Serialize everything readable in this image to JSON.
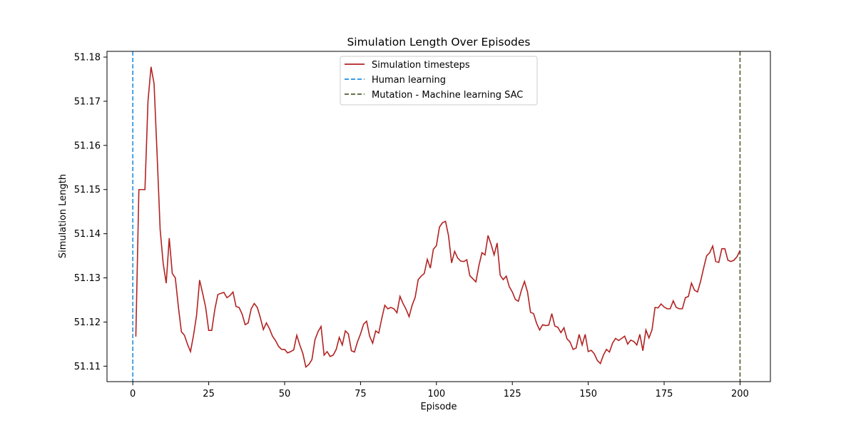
{
  "chart_data": {
    "type": "line",
    "title": "Simulation Length Over Episodes",
    "xlabel": "Episode",
    "ylabel": "Simulation Length",
    "xlim": [
      -8.5,
      210
    ],
    "ylim": [
      51.1065,
      51.1813
    ],
    "xticks": [
      0,
      25,
      50,
      75,
      100,
      125,
      150,
      175,
      200
    ],
    "yticks": [
      51.11,
      51.12,
      51.13,
      51.14,
      51.15,
      51.16,
      51.17,
      51.18
    ],
    "ytick_labels": [
      "51.11",
      "51.12",
      "51.13",
      "51.14",
      "51.15",
      "51.16",
      "51.17",
      "51.18"
    ],
    "grid": false,
    "legend_position": "top-center",
    "series": [
      {
        "name": "Simulation timesteps",
        "color": "#b22222",
        "style": "solid",
        "x": [
          1,
          2,
          3,
          4,
          5,
          6,
          7,
          8,
          9,
          10,
          11,
          12,
          13,
          14,
          15,
          16,
          17,
          18,
          19,
          20,
          21,
          22,
          23,
          24,
          25,
          26,
          27,
          28,
          29,
          30,
          31,
          32,
          33,
          34,
          35,
          36,
          37,
          38,
          39,
          40,
          41,
          42,
          43,
          44,
          45,
          46,
          47,
          48,
          49,
          50,
          51,
          52,
          53,
          54,
          55,
          56,
          57,
          58,
          59,
          60,
          61,
          62,
          63,
          64,
          65,
          66,
          67,
          68,
          69,
          70,
          71,
          72,
          73,
          74,
          75,
          76,
          77,
          78,
          79,
          80,
          81,
          82,
          83,
          84,
          85,
          86,
          87,
          88,
          89,
          90,
          91,
          92,
          93,
          94,
          95,
          96,
          97,
          98,
          99,
          100,
          101,
          102,
          103,
          104,
          105,
          106,
          107,
          108,
          109,
          110,
          111,
          112,
          113,
          114,
          115,
          116,
          117,
          118,
          119,
          120,
          121,
          122,
          123,
          124,
          125,
          126,
          127,
          128,
          129,
          130,
          131,
          132,
          133,
          134,
          135,
          136,
          137,
          138,
          139,
          140,
          141,
          142,
          143,
          144,
          145,
          146,
          147,
          148,
          149,
          150,
          151,
          152,
          153,
          154,
          155,
          156,
          157,
          158,
          159,
          160,
          161,
          162,
          163,
          164,
          165,
          166,
          167,
          168,
          169,
          170,
          171,
          172,
          173,
          174,
          175,
          176,
          177,
          178,
          179,
          180,
          181,
          182,
          183,
          184,
          185,
          186,
          187,
          188,
          189,
          190,
          191,
          192,
          193,
          194,
          195,
          196,
          197,
          198,
          199,
          200
        ],
        "y": [
          51.1167,
          51.15,
          51.15,
          51.15,
          51.17,
          51.1778,
          51.174,
          51.158,
          51.141,
          51.1333,
          51.1288,
          51.139,
          51.131,
          51.13,
          51.1235,
          51.1178,
          51.117,
          51.115,
          51.1133,
          51.117,
          51.1215,
          51.1295,
          51.1265,
          51.1233,
          51.1181,
          51.1181,
          51.1228,
          51.1262,
          51.1265,
          51.1267,
          51.1255,
          51.126,
          51.1268,
          51.1235,
          51.1233,
          51.1218,
          51.1194,
          51.1198,
          51.123,
          51.1242,
          51.1233,
          51.121,
          51.1183,
          51.1198,
          51.1185,
          51.1168,
          51.1158,
          51.1145,
          51.1138,
          51.1138,
          51.113,
          51.1133,
          51.1137,
          51.117,
          51.1148,
          51.1129,
          51.1098,
          51.1104,
          51.1115,
          51.116,
          51.1178,
          51.119,
          51.1125,
          51.1133,
          51.1122,
          51.1125,
          51.1138,
          51.1165,
          51.1148,
          51.118,
          51.1173,
          51.1135,
          51.1132,
          51.1155,
          51.1173,
          51.1195,
          51.1202,
          51.1168,
          51.1152,
          51.118,
          51.1175,
          51.1208,
          51.1238,
          51.123,
          51.1233,
          51.123,
          51.1221,
          51.1258,
          51.1242,
          51.1229,
          51.1212,
          51.1238,
          51.1256,
          51.1296,
          51.1304,
          51.131,
          51.1342,
          51.1322,
          51.1365,
          51.1373,
          51.1415,
          51.1425,
          51.1428,
          51.1395,
          51.1334,
          51.136,
          51.1345,
          51.1338,
          51.1337,
          51.1341,
          51.1305,
          51.1298,
          51.1291,
          51.1328,
          51.1357,
          51.1352,
          51.1396,
          51.1376,
          51.1352,
          51.1379,
          51.1306,
          51.1296,
          51.1304,
          51.128,
          51.1268,
          51.1251,
          51.1247,
          51.1272,
          51.1292,
          51.1268,
          51.1222,
          51.1219,
          51.1197,
          51.1182,
          51.1194,
          51.1192,
          51.1193,
          51.1219,
          51.1191,
          51.1188,
          51.1176,
          51.1187,
          51.1162,
          51.1155,
          51.1138,
          51.1141,
          51.1172,
          51.1148,
          51.1172,
          51.1133,
          51.1136,
          51.1128,
          51.1113,
          51.1106,
          51.1125,
          51.1138,
          51.1132,
          51.1152,
          51.1163,
          51.1158,
          51.1163,
          51.1168,
          51.115,
          51.1159,
          51.1156,
          51.1148,
          51.1172,
          51.1135,
          51.1182,
          51.1164,
          51.1182,
          51.1233,
          51.1232,
          51.1241,
          51.1234,
          51.123,
          51.123,
          51.1248,
          51.1233,
          51.123,
          51.123,
          51.1255,
          51.1258,
          51.1288,
          51.1272,
          51.1268,
          51.1292,
          51.1322,
          51.135,
          51.1357,
          51.1372,
          51.1337,
          51.1335,
          51.1366,
          51.1366,
          51.134,
          51.1337,
          51.134,
          51.1348,
          51.1362
        ]
      },
      {
        "name": "Human learning",
        "color": "#1f8fe0",
        "style": "dashed",
        "vline_x": 0
      },
      {
        "name": "Mutation - Machine learning SAC",
        "color": "#4f5e2e",
        "style": "dashed",
        "vline_x": 200
      }
    ]
  }
}
